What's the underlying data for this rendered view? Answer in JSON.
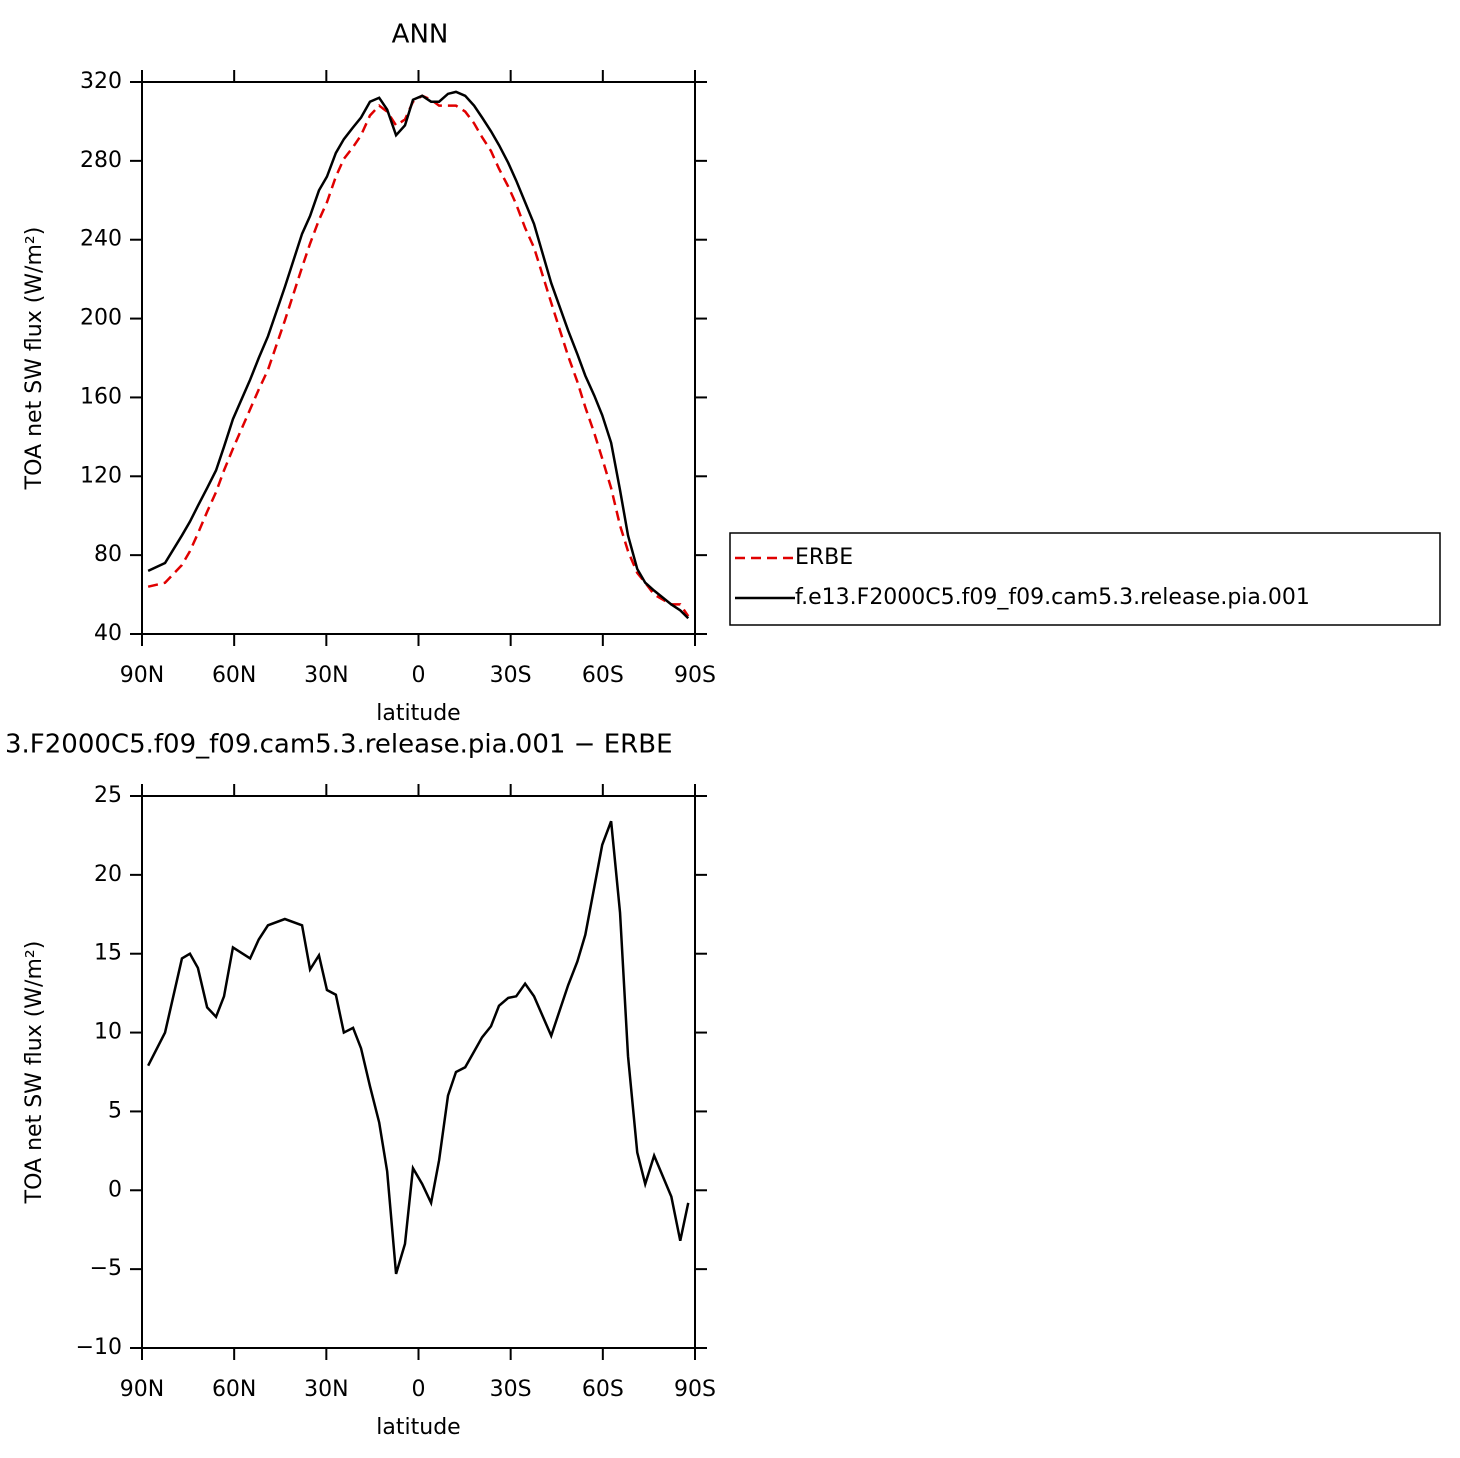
{
  "chart_data": [
    {
      "type": "line",
      "title": "ANN",
      "xlabel": "latitude",
      "ylabel": "TOA net SW flux (W/m²)",
      "x": [
        88.0,
        82.5,
        77.0,
        74.4,
        71.8,
        68.8,
        65.9,
        63.3,
        60.4,
        54.8,
        52.0,
        49.0,
        43.5,
        37.9,
        35.3,
        32.4,
        29.8,
        26.9,
        24.3,
        21.3,
        18.7,
        15.8,
        12.8,
        10.2,
        7.3,
        4.4,
        1.8,
        -1.2,
        -4.1,
        -6.7,
        -9.6,
        -12.2,
        -15.2,
        -18.1,
        -20.7,
        -23.6,
        -26.2,
        -29.2,
        -31.8,
        -34.7,
        -37.6,
        -43.2,
        -48.7,
        -51.7,
        -54.3,
        -57.2,
        -59.8,
        -62.7,
        -65.6,
        -68.2,
        -71.2,
        -73.8,
        -76.7,
        -82.3,
        -85.2,
        -87.8
      ],
      "series": [
        {
          "name": "ERBE",
          "color": "#e00000",
          "dashed": true,
          "values": [
            64,
            66,
            75,
            82,
            91,
            102,
            112,
            123,
            134,
            154,
            164,
            174,
            199,
            226,
            238,
            250,
            259,
            272,
            281,
            287,
            293,
            303,
            308,
            305,
            298,
            301,
            310,
            313,
            311,
            308,
            308,
            308,
            305,
            299,
            292,
            285,
            276,
            267,
            258,
            246,
            236,
            208,
            181,
            168,
            155,
            142,
            129,
            114,
            95,
            82,
            71,
            66,
            60,
            55,
            55,
            49
          ]
        },
        {
          "name": "f.e13.F2000C5.f09_f09.cam5.3.release.pia.001",
          "color": "#000000",
          "dashed": false,
          "values": [
            72,
            76,
            90,
            97,
            105,
            114,
            123,
            135,
            149,
            169,
            180,
            191,
            216,
            243,
            252,
            265,
            272,
            284,
            291,
            297,
            302,
            310,
            312,
            306,
            293,
            298,
            311,
            313,
            310,
            310,
            314,
            315,
            313,
            308,
            302,
            295,
            288,
            279,
            270,
            259,
            248,
            218,
            194,
            182,
            171,
            161,
            151,
            137,
            113,
            90,
            73,
            66,
            62,
            55,
            52,
            48
          ]
        }
      ],
      "xlim": [
        90,
        -90
      ],
      "xticks": [
        {
          "value": 90,
          "label": "90N"
        },
        {
          "value": 60,
          "label": "60N"
        },
        {
          "value": 30,
          "label": "30N"
        },
        0,
        {
          "value": -30,
          "label": "30S"
        },
        {
          "value": -60,
          "label": "60S"
        },
        {
          "value": -90,
          "label": "90S"
        }
      ],
      "ylim": [
        40,
        320
      ],
      "yticks": [
        40,
        80,
        120,
        160,
        200,
        240,
        280,
        320
      ],
      "legend": "right"
    },
    {
      "type": "line",
      "title": "3.F2000C5.f09_f09.cam5.3.release.pia.001 − ERBE",
      "xlabel": "latitude",
      "ylabel": "TOA net SW flux (W/m²)",
      "x": [
        88.0,
        82.5,
        77.0,
        74.4,
        71.8,
        68.8,
        65.9,
        63.3,
        60.4,
        54.8,
        52.0,
        49.0,
        43.5,
        37.9,
        35.3,
        32.4,
        29.8,
        26.9,
        24.3,
        21.3,
        18.7,
        15.8,
        12.8,
        10.2,
        7.3,
        4.4,
        1.8,
        -1.2,
        -4.1,
        -6.7,
        -9.6,
        -12.2,
        -15.2,
        -18.1,
        -20.7,
        -23.6,
        -26.2,
        -29.2,
        -31.8,
        -34.7,
        -37.6,
        -43.2,
        -48.7,
        -51.7,
        -54.3,
        -57.2,
        -59.8,
        -62.7,
        -65.6,
        -68.2,
        -71.2,
        -73.8,
        -76.7,
        -82.3,
        -85.2,
        -87.8
      ],
      "values": [
        7.9,
        10.0,
        14.7,
        15.0,
        14.1,
        11.6,
        11.0,
        12.3,
        15.4,
        14.7,
        15.9,
        16.8,
        17.2,
        16.8,
        14.0,
        14.9,
        12.7,
        12.4,
        10.0,
        10.3,
        9.0,
        6.6,
        4.3,
        1.2,
        -5.3,
        -3.4,
        1.4,
        0.4,
        -0.8,
        1.9,
        6.0,
        7.5,
        7.8,
        8.8,
        9.7,
        10.4,
        11.7,
        12.2,
        12.3,
        13.1,
        12.3,
        9.8,
        13.0,
        14.5,
        16.2,
        19.2,
        21.9,
        23.4,
        17.6,
        8.5,
        2.4,
        0.4,
        2.2,
        -0.4,
        -3.2,
        -0.8
      ],
      "color": "#000000",
      "xlim": [
        90,
        -90
      ],
      "xticks": [
        {
          "value": 90,
          "label": "90N"
        },
        {
          "value": 60,
          "label": "60N"
        },
        {
          "value": 30,
          "label": "30N"
        },
        0,
        {
          "value": -30,
          "label": "30S"
        },
        {
          "value": -60,
          "label": "60S"
        },
        {
          "value": -90,
          "label": "90S"
        }
      ],
      "ylim": [
        -10,
        25
      ],
      "yticks": [
        {
          "value": -10,
          "label": "−10"
        },
        {
          "value": -5,
          "label": "−5"
        },
        0,
        5,
        10,
        15,
        20,
        25
      ]
    }
  ]
}
